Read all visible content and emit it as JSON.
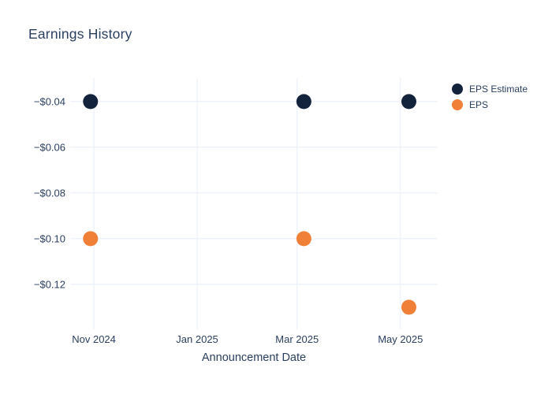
{
  "title": {
    "text": "Earnings History"
  },
  "x_axis": {
    "label": "Announcement Date",
    "ticks": [
      {
        "label": "Nov 2024",
        "date": "2024-11-01"
      },
      {
        "label": "Jan 2025",
        "date": "2025-01-01"
      },
      {
        "label": "Mar 2025",
        "date": "2025-03-01"
      },
      {
        "label": "May 2025",
        "date": "2025-05-01"
      }
    ],
    "range": [
      "2024-10-18",
      "2025-05-23"
    ]
  },
  "y_axis": {
    "ticks": [
      {
        "label": "−$0.04",
        "value": -0.04
      },
      {
        "label": "−$0.06",
        "value": -0.06
      },
      {
        "label": "−$0.08",
        "value": -0.08
      },
      {
        "label": "−$0.10",
        "value": -0.1
      },
      {
        "label": "−$0.12",
        "value": -0.12
      }
    ],
    "range": [
      -0.1397,
      -0.0297
    ]
  },
  "legend": {
    "items": [
      {
        "label": "EPS Estimate",
        "color": "#14233C"
      },
      {
        "label": "EPS",
        "color": "#F08038"
      }
    ]
  },
  "chart_data": {
    "type": "scatter",
    "title": "Earnings History",
    "xlabel": "Announcement Date",
    "ylabel": "",
    "x": [
      "2024-10-30",
      "2025-03-05",
      "2025-05-06"
    ],
    "x_tick_labels": [
      "Nov 2024",
      "Jan 2025",
      "Mar 2025",
      "May 2025"
    ],
    "y_tick_labels": [
      "−$0.04",
      "−$0.06",
      "−$0.08",
      "−$0.10",
      "−$0.12"
    ],
    "series": [
      {
        "name": "EPS Estimate",
        "color": "#14233C",
        "values": [
          -0.04,
          -0.04,
          -0.04
        ]
      },
      {
        "name": "EPS",
        "color": "#F08038",
        "values": [
          -0.1,
          -0.1,
          -0.13
        ]
      }
    ],
    "xlim": [
      "2024-10-18",
      "2025-05-23"
    ],
    "ylim": [
      -0.1397,
      -0.0297
    ],
    "grid": true,
    "legend_position": "right",
    "marker_size_px": 19
  },
  "colors": {
    "background": "#FFFFFF",
    "grid": "#EBF0F8",
    "text": "#2A3F5F",
    "navy": "#14233C",
    "orange": "#F08038"
  }
}
